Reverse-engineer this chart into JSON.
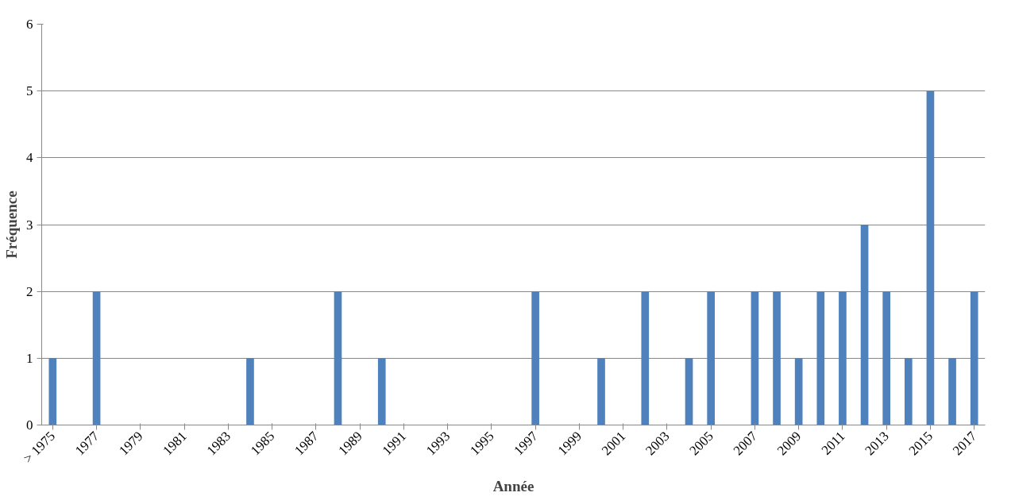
{
  "chart_data": {
    "type": "bar",
    "xlabel": "Année",
    "ylabel": "Fréquence",
    "categories": [
      "> 1975",
      null,
      "1977",
      null,
      "1979",
      null,
      "1981",
      null,
      "1983",
      null,
      "1985",
      null,
      "1987",
      null,
      "1989",
      null,
      "1991",
      null,
      "1993",
      null,
      "1995",
      null,
      "1997",
      null,
      "1999",
      null,
      "2001",
      null,
      "2003",
      null,
      "2005",
      null,
      "2007",
      null,
      "2009",
      null,
      "2011",
      null,
      "2013",
      null,
      "2015",
      null,
      "2017"
    ],
    "values": [
      1,
      0,
      2,
      0,
      0,
      0,
      0,
      0,
      0,
      1,
      0,
      0,
      0,
      2,
      0,
      1,
      0,
      0,
      0,
      0,
      0,
      0,
      2,
      0,
      0,
      1,
      0,
      2,
      0,
      1,
      2,
      0,
      2,
      2,
      1,
      2,
      2,
      3,
      2,
      1,
      5,
      1,
      2
    ],
    "color": "#4f81bd",
    "ylim": [
      0,
      6
    ],
    "yticks": [
      0,
      1,
      2,
      3,
      4,
      5,
      6
    ],
    "grid": "y"
  }
}
